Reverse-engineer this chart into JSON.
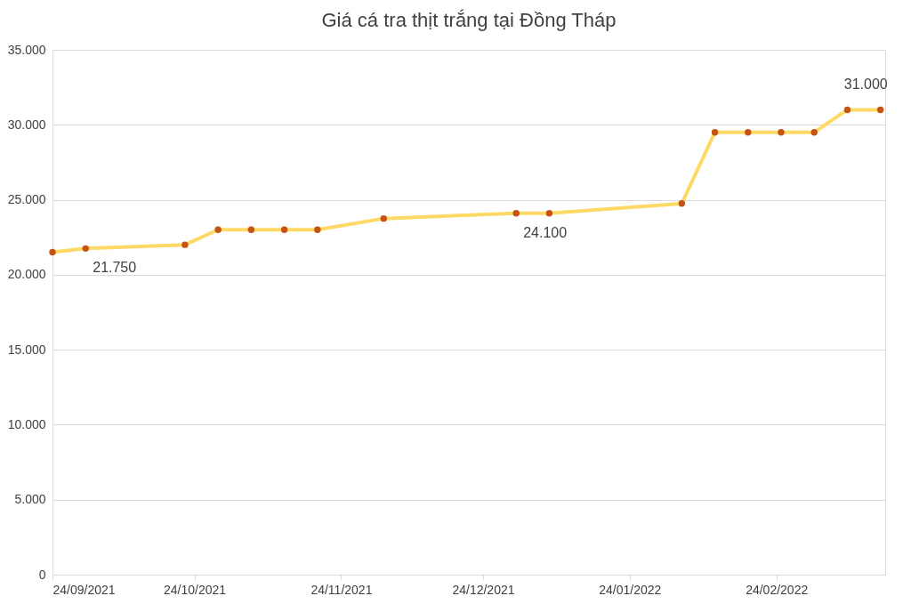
{
  "chart_data": {
    "type": "line",
    "title": "Giá cá tra thịt trắng tại Đồng Tháp",
    "x": [
      "2021-09-24",
      "2021-10-01",
      "2021-10-22",
      "2021-10-29",
      "2021-11-05",
      "2021-11-12",
      "2021-11-19",
      "2021-12-03",
      "2021-12-31",
      "2022-01-07",
      "2022-02-04",
      "2022-02-11",
      "2022-02-18",
      "2022-02-25",
      "2022-03-04",
      "2022-03-11",
      "2022-03-18"
    ],
    "series": [
      {
        "color": "#ffd966",
        "values": [
          21500,
          21750,
          22000,
          23000,
          23000,
          23000,
          23000,
          23750,
          24100,
          24100,
          24750,
          29500,
          29500,
          29500,
          29500,
          31000,
          31000
        ]
      }
    ],
    "xlim": [
      "2021-09-24",
      "2022-03-19"
    ],
    "xticks": [
      {
        "value": "2021-09-24",
        "label": "24/09/2021"
      },
      {
        "value": "2021-10-24",
        "label": "24/10/2021"
      },
      {
        "value": "2021-11-24",
        "label": "24/11/2021"
      },
      {
        "value": "2021-12-24",
        "label": "24/12/2021"
      },
      {
        "value": "2022-01-24",
        "label": "24/01/2022"
      },
      {
        "value": "2022-02-24",
        "label": "24/02/2022"
      }
    ],
    "ylim": [
      0,
      35000
    ],
    "yticks": [
      0,
      {
        "value": 5000,
        "label": "5.000"
      },
      {
        "value": 10000,
        "label": "10.000"
      },
      {
        "value": 15000,
        "label": "15.000"
      },
      {
        "value": 20000,
        "label": "20.000"
      },
      {
        "value": 25000,
        "label": "25.000"
      },
      {
        "value": 30000,
        "label": "30.000"
      },
      {
        "value": 35000,
        "label": "35.000"
      }
    ],
    "grid": "y",
    "marker": "circle",
    "line_style": "solid",
    "annotations": [
      {
        "text": "21.750",
        "x": "2021-10-01",
        "y": 21750
      },
      {
        "text": "24.100",
        "x": "2021-12-31",
        "y": 24100
      },
      {
        "text": "31.000",
        "x": "2022-03-18",
        "y": 31000
      }
    ]
  }
}
